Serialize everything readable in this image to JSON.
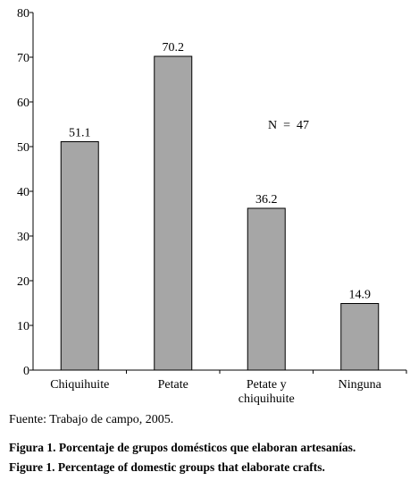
{
  "chart_data": {
    "type": "bar",
    "categories": [
      "Chiquihuite",
      "Petate",
      "Petate y\nchiquihuite",
      "Ninguna"
    ],
    "values": [
      51.1,
      70.2,
      36.2,
      14.9
    ],
    "color": "#a6a6a6",
    "ylim": [
      0,
      80
    ],
    "yticks": [
      0,
      10,
      20,
      30,
      40,
      50,
      60,
      70,
      80
    ],
    "annotation": "N  =  47",
    "source": "Fuente: Trabajo de campo, 2005.",
    "caption_es": "Figura 1. Porcentaje de grupos domésticos que elaboran artesanías.",
    "caption_en": "Figure 1. Percentage of domestic groups that elaborate crafts."
  }
}
